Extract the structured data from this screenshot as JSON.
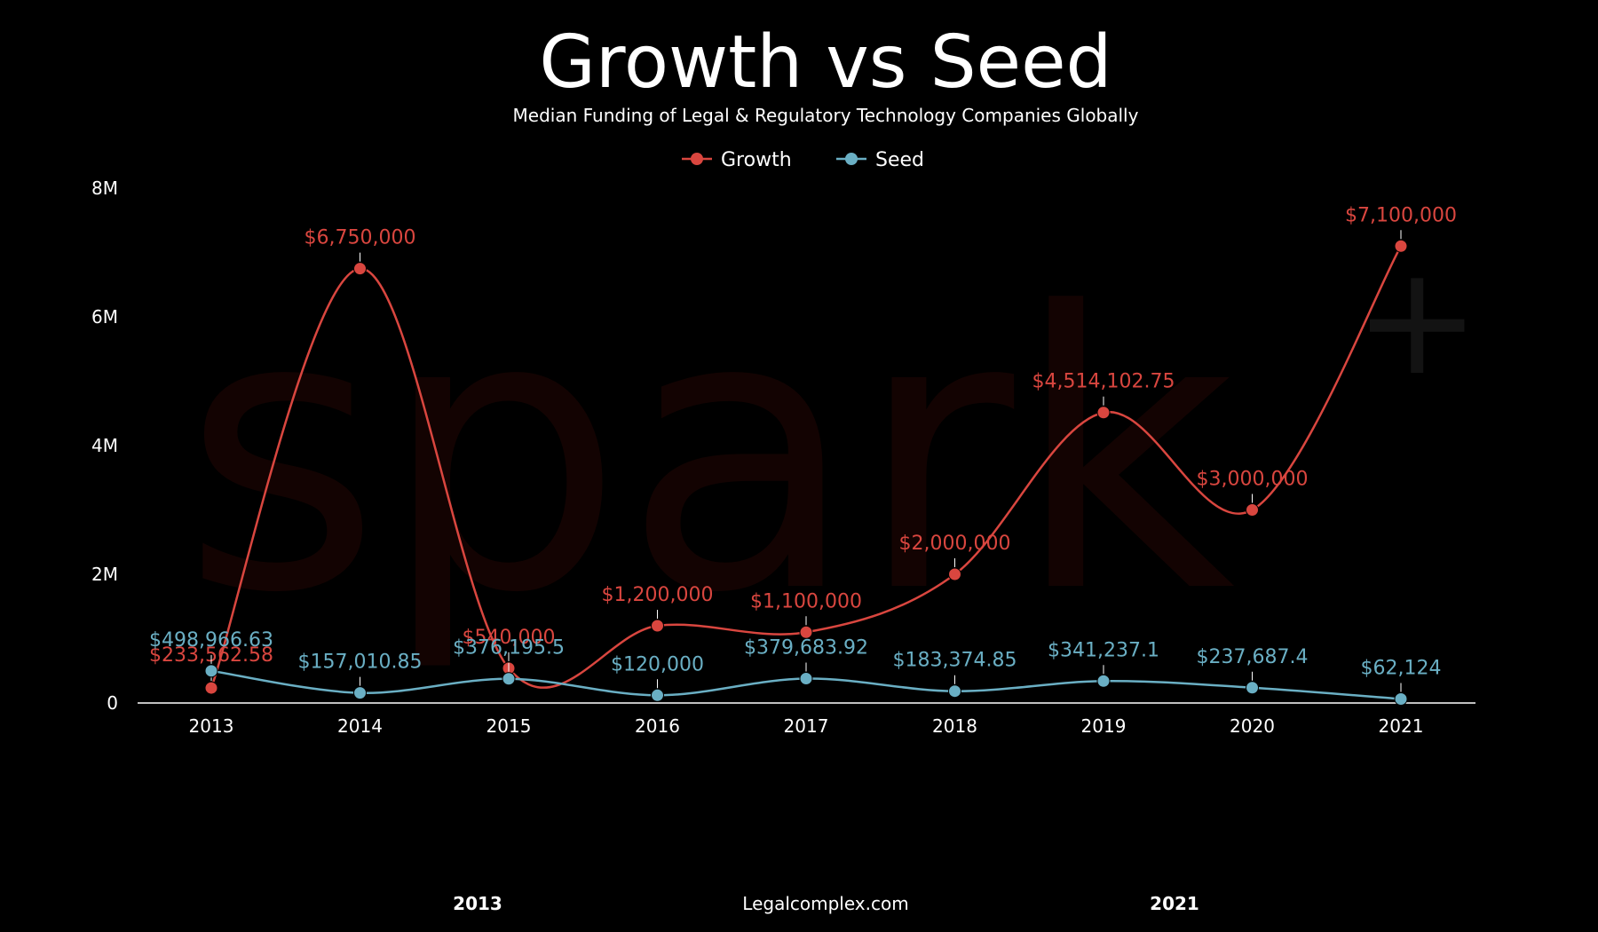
{
  "title": "Growth vs Seed",
  "subtitle": "Median Funding of Legal & Regulatory Technology Companies Globally",
  "watermark": {
    "text": "spark",
    "plus": "+"
  },
  "footer": {
    "left": "2013",
    "center": "Legalcomplex.com",
    "right": "2021"
  },
  "colors": {
    "growth": "#d9463f",
    "seed": "#6aafc4",
    "background": "#000000",
    "axis": "#ffffff"
  },
  "chart_data": {
    "type": "line",
    "categories": [
      "2013",
      "2014",
      "2015",
      "2016",
      "2017",
      "2018",
      "2019",
      "2020",
      "2021"
    ],
    "ylim": [
      0,
      8000000
    ],
    "yticks": [
      {
        "value": 0,
        "label": "0"
      },
      {
        "value": 2000000,
        "label": "2M"
      },
      {
        "value": 4000000,
        "label": "4M"
      },
      {
        "value": 6000000,
        "label": "6M"
      },
      {
        "value": 8000000,
        "label": "8M"
      }
    ],
    "legend_position": "top-center",
    "grid": false,
    "series": [
      {
        "name": "Growth",
        "values": [
          233562.58,
          6750000,
          540000,
          1200000,
          1100000,
          2000000,
          4514102.75,
          3000000,
          7100000
        ],
        "labels": [
          "$233,562.58",
          "$6,750,000",
          "$540,000",
          "$1,200,000",
          "$1,100,000",
          "$2,000,000",
          "$4,514,102.75",
          "$3,000,000",
          "$7,100,000"
        ]
      },
      {
        "name": "Seed",
        "values": [
          498966.63,
          157010.85,
          376195.5,
          120000,
          379683.92,
          183374.85,
          341237.1,
          237687.4,
          62124
        ],
        "labels": [
          "$498,966.63",
          "$157,010.85",
          "$376,195.5",
          "$120,000",
          "$379,683.92",
          "$183,374.85",
          "$341,237.1",
          "$237,687.4",
          "$62,124"
        ]
      }
    ]
  }
}
